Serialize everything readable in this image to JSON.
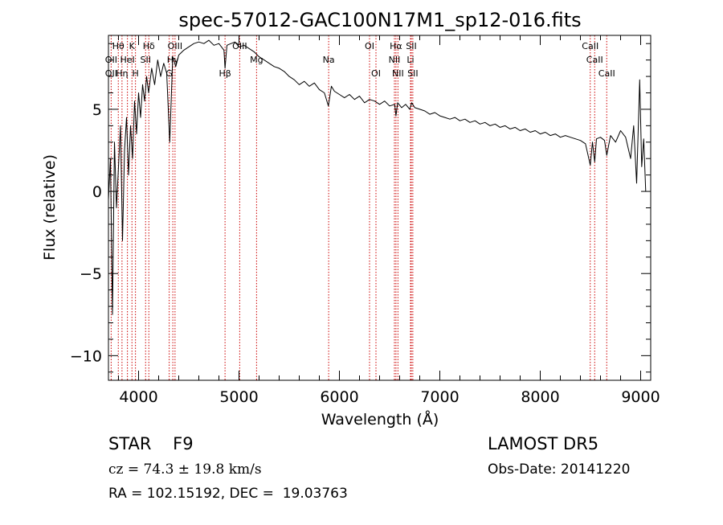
{
  "chart_data": {
    "type": "line",
    "title": "spec-57012-GAC100N17M1_sp12-016.fits",
    "xlabel": "Wavelength (Å)",
    "ylabel": "Flux (relative)",
    "xlim": [
      3700,
      9100
    ],
    "ylim": [
      -11.5,
      9.5
    ],
    "x_ticks": [
      4000,
      5000,
      6000,
      7000,
      8000,
      9000
    ],
    "y_ticks": [
      -10,
      -5,
      0,
      5
    ],
    "grid": false,
    "series": [
      {
        "x": [
          3700,
          3720,
          3740,
          3760,
          3780,
          3800,
          3820,
          3840,
          3860,
          3880,
          3900,
          3920,
          3940,
          3960,
          3980,
          4000,
          4020,
          4040,
          4060,
          4080,
          4100,
          4130,
          4160,
          4190,
          4220,
          4250,
          4280,
          4310,
          4340,
          4370,
          4400,
          4450,
          4500,
          4550,
          4600,
          4650,
          4700,
          4750,
          4800,
          4850,
          4861,
          4880,
          4920,
          4960,
          5000,
          5050,
          5100,
          5150,
          5200,
          5250,
          5300,
          5350,
          5400,
          5450,
          5500,
          5550,
          5600,
          5650,
          5700,
          5750,
          5800,
          5850,
          5890,
          5920,
          5950,
          6000,
          6050,
          6100,
          6150,
          6200,
          6250,
          6300,
          6350,
          6400,
          6450,
          6500,
          6550,
          6563,
          6580,
          6620,
          6660,
          6700,
          6720,
          6750,
          6800,
          6850,
          6900,
          6950,
          7000,
          7050,
          7100,
          7150,
          7200,
          7250,
          7300,
          7350,
          7400,
          7450,
          7500,
          7550,
          7600,
          7650,
          7700,
          7750,
          7800,
          7850,
          7900,
          7950,
          8000,
          8050,
          8100,
          8150,
          8200,
          8250,
          8300,
          8350,
          8400,
          8450,
          8498,
          8520,
          8542,
          8560,
          8600,
          8640,
          8662,
          8700,
          8750,
          8800,
          8850,
          8900,
          8930,
          8960,
          8990,
          9010,
          9030,
          9050
        ],
        "values": [
          -0.5,
          2.0,
          -7.5,
          3.0,
          -1.0,
          1.5,
          4.0,
          -3.0,
          2.5,
          4.5,
          1.0,
          4.0,
          2.0,
          5.5,
          3.5,
          6.0,
          4.5,
          6.5,
          5.5,
          7.0,
          6.0,
          7.5,
          6.5,
          8.0,
          7.0,
          7.8,
          7.2,
          3.0,
          8.2,
          7.6,
          8.3,
          8.6,
          8.8,
          9.0,
          9.1,
          9.0,
          9.2,
          8.9,
          9.0,
          8.6,
          7.5,
          8.9,
          9.0,
          9.1,
          8.8,
          8.9,
          8.7,
          8.5,
          8.2,
          8.0,
          7.8,
          7.6,
          7.5,
          7.3,
          7.0,
          6.8,
          6.5,
          6.7,
          6.4,
          6.6,
          6.2,
          6.0,
          5.2,
          6.4,
          6.1,
          5.9,
          5.7,
          5.9,
          5.6,
          5.8,
          5.4,
          5.6,
          5.5,
          5.3,
          5.5,
          5.2,
          5.3,
          4.6,
          5.4,
          5.1,
          5.3,
          5.0,
          5.4,
          5.1,
          5.0,
          4.9,
          4.7,
          4.8,
          4.6,
          4.5,
          4.4,
          4.5,
          4.3,
          4.4,
          4.2,
          4.3,
          4.1,
          4.2,
          4.0,
          4.1,
          3.9,
          4.0,
          3.8,
          3.9,
          3.7,
          3.8,
          3.6,
          3.7,
          3.5,
          3.6,
          3.4,
          3.5,
          3.3,
          3.4,
          3.3,
          3.2,
          3.1,
          2.9,
          1.6,
          3.0,
          1.8,
          3.2,
          3.3,
          3.1,
          2.2,
          3.4,
          3.0,
          3.7,
          3.3,
          2.0,
          4.0,
          0.5,
          6.8,
          1.5,
          3.2,
          0.0
        ]
      }
    ],
    "lines": [
      {
        "label": "Hθ",
        "x": 3798
      },
      {
        "label": "OII",
        "x": 3727
      },
      {
        "label": "Hη",
        "x": 3835
      },
      {
        "label": "K",
        "x": 3934
      },
      {
        "label": "HeI",
        "x": 3889
      },
      {
        "label": "H",
        "x": 3969
      },
      {
        "label": "Hδ",
        "x": 4102
      },
      {
        "label": "SII",
        "x": 4070
      },
      {
        "label": "OIII",
        "x": 4363
      },
      {
        "label": "Hγ",
        "x": 4341
      },
      {
        "label": "G",
        "x": 4305
      },
      {
        "label": "Hβ",
        "x": 4861
      },
      {
        "label": "OIII",
        "x": 5007
      },
      {
        "label": "Mg",
        "x": 5175
      },
      {
        "label": "Na",
        "x": 5893
      },
      {
        "label": "OI",
        "x": 6300
      },
      {
        "label": "OI",
        "x": 6364
      },
      {
        "label": "Hα",
        "x": 6563
      },
      {
        "label": "NII",
        "x": 6548
      },
      {
        "label": "NII",
        "x": 6583
      },
      {
        "label": "Li",
        "x": 6708
      },
      {
        "label": "SII",
        "x": 6716
      },
      {
        "label": "SII",
        "x": 6731
      },
      {
        "label": "CaII",
        "x": 8498
      },
      {
        "label": "CaII",
        "x": 8542
      },
      {
        "label": "CaII",
        "x": 8662
      }
    ],
    "line_labels_shown": [
      {
        "text": "Hθ",
        "x": 3798,
        "row": 0
      },
      {
        "text": "K",
        "x": 3934,
        "row": 0
      },
      {
        "text": "Hδ",
        "x": 4102,
        "row": 0
      },
      {
        "text": "OII",
        "x": 3727,
        "row": 1
      },
      {
        "text": "HeI",
        "x": 3889,
        "row": 1
      },
      {
        "text": "SII",
        "x": 4070,
        "row": 1
      },
      {
        "text": "OII",
        "x": 3727,
        "row": 2
      },
      {
        "text": "Hη",
        "x": 3835,
        "row": 2
      },
      {
        "text": "H",
        "x": 3969,
        "row": 2
      },
      {
        "text": "OIII",
        "x": 4363,
        "row": 0
      },
      {
        "text": "Hγ",
        "x": 4341,
        "row": 1
      },
      {
        "text": "G",
        "x": 4305,
        "row": 2
      },
      {
        "text": "OIII",
        "x": 5007,
        "row": 0
      },
      {
        "text": "Hβ",
        "x": 4861,
        "row": 2
      },
      {
        "text": "Mg",
        "x": 5175,
        "row": 1
      },
      {
        "text": "Na",
        "x": 5893,
        "row": 1
      },
      {
        "text": "OI",
        "x": 6300,
        "row": 0
      },
      {
        "text": "OI",
        "x": 6364,
        "row": 2
      },
      {
        "text": "Hα",
        "x": 6563,
        "row": 0
      },
      {
        "text": "NII",
        "x": 6548,
        "row": 1
      },
      {
        "text": "NII",
        "x": 6583,
        "row": 2
      },
      {
        "text": "SII",
        "x": 6716,
        "row": 0
      },
      {
        "text": "Li",
        "x": 6708,
        "row": 1
      },
      {
        "text": "SII",
        "x": 6731,
        "row": 2
      },
      {
        "text": "CaII",
        "x": 8498,
        "row": 0
      },
      {
        "text": "CaII",
        "x": 8542,
        "row": 1
      },
      {
        "text": "CaII",
        "x": 8662,
        "row": 2
      }
    ]
  },
  "info": {
    "class_label": "STAR    F9",
    "survey_label": "LAMOST DR5",
    "cz_label": "cz = 74.3 ± 19.8 km/s",
    "obs_date_label": "Obs-Date: 20141220",
    "radec_label": "RA = 102.15192, DEC =  19.03763"
  },
  "colors": {
    "axes": "#000000",
    "spectrum": "#000000",
    "lines": "#cc0000",
    "background": "#ffffff"
  }
}
